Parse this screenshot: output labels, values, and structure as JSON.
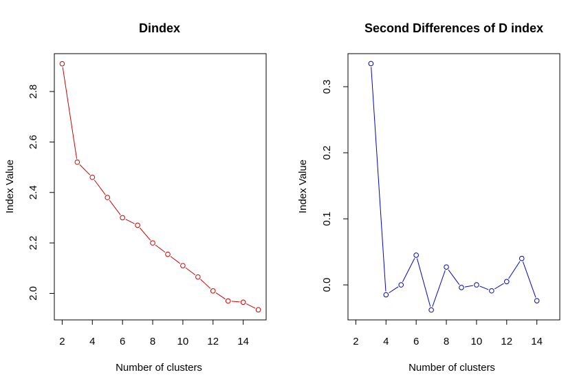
{
  "chart_data": [
    {
      "type": "line",
      "title": "Dindex",
      "xlabel": "Number of clusters",
      "ylabel": "Index Value",
      "color": "#cc0000",
      "x": [
        2,
        3,
        4,
        5,
        6,
        7,
        8,
        9,
        10,
        11,
        12,
        13,
        14,
        15
      ],
      "values": [
        2.91,
        2.52,
        2.46,
        2.38,
        2.3,
        2.27,
        2.2,
        2.155,
        2.11,
        2.065,
        2.01,
        1.97,
        1.965,
        1.935
      ],
      "xlim": [
        1.48,
        15.52
      ],
      "ylim": [
        1.895,
        2.95
      ],
      "xticks": [
        2,
        4,
        6,
        8,
        10,
        12,
        14
      ],
      "yticks": [
        2.0,
        2.2,
        2.4,
        2.6,
        2.8
      ],
      "xtick_labels": [
        "2",
        "4",
        "6",
        "8",
        "10",
        "12",
        "14"
      ],
      "ytick_labels": [
        "2.0",
        "2.2",
        "2.4",
        "2.6",
        "2.8"
      ],
      "grid": false,
      "legend": "none"
    },
    {
      "type": "line",
      "title": "Second Differences of D index",
      "xlabel": "Number of clusters",
      "ylabel": "Index Value",
      "color": "#0000cc",
      "x": [
        3,
        4,
        5,
        6,
        7,
        8,
        9,
        10,
        11,
        12,
        13,
        14
      ],
      "values": [
        0.335,
        -0.015,
        0.0,
        0.045,
        -0.038,
        0.027,
        -0.004,
        0.0,
        -0.009,
        0.005,
        0.04,
        -0.024
      ],
      "xlim": [
        1.48,
        15.52
      ],
      "ylim": [
        -0.053,
        0.35
      ],
      "xticks": [
        2,
        4,
        6,
        8,
        10,
        12,
        14
      ],
      "yticks": [
        0.0,
        0.1,
        0.2,
        0.3
      ],
      "xtick_labels": [
        "2",
        "4",
        "6",
        "8",
        "10",
        "12",
        "14"
      ],
      "ytick_labels": [
        "0.0",
        "0.1",
        "0.2",
        "0.3"
      ],
      "grid": false,
      "legend": "none"
    }
  ]
}
